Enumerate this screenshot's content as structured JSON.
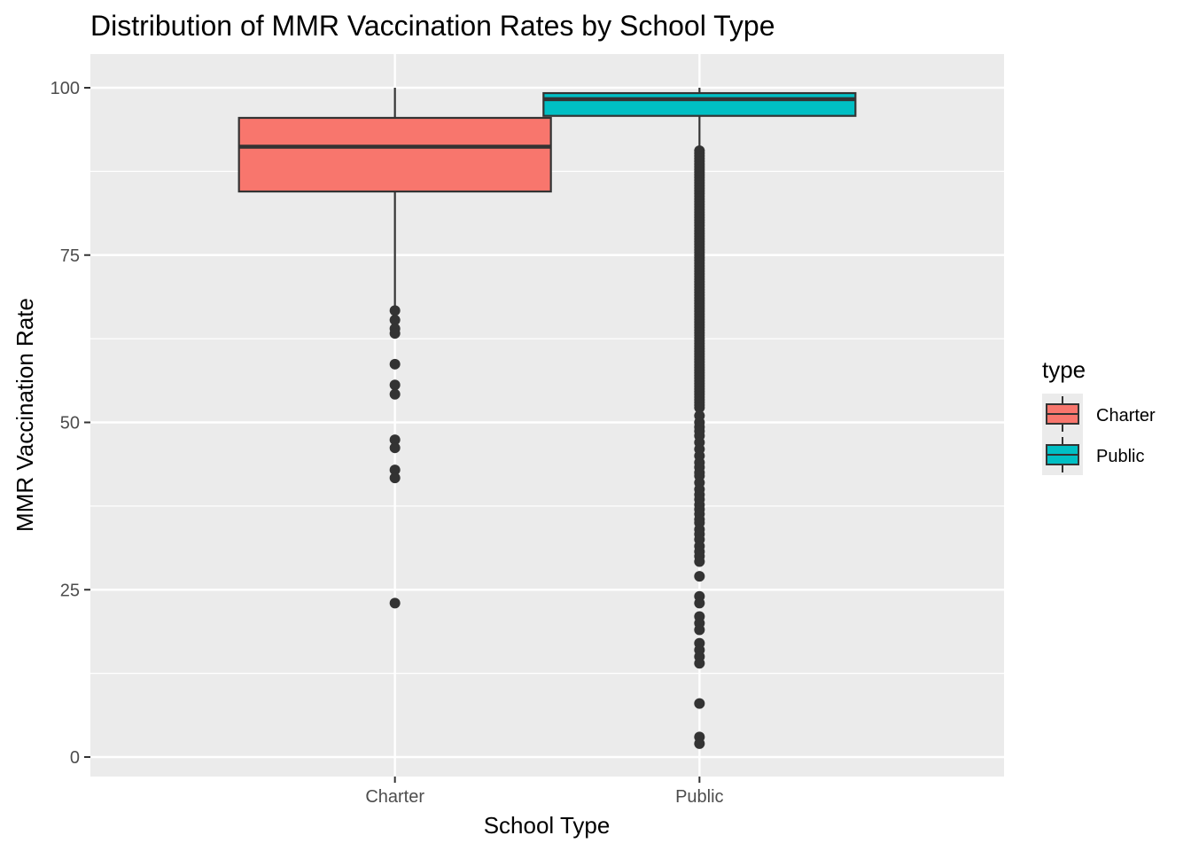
{
  "chart_data": {
    "type": "boxplot",
    "title": "Distribution of MMR Vaccination Rates by School Type",
    "xlabel": "School Type",
    "ylabel": "MMR Vaccination Rate",
    "categories": [
      "Charter",
      "Public"
    ],
    "ylim": [
      -3,
      105
    ],
    "yticks": [
      0,
      25,
      50,
      75,
      100
    ],
    "grid": true,
    "legend": {
      "title": "type",
      "position": "right",
      "entries": [
        {
          "label": "Charter",
          "color": "#F8766D"
        },
        {
          "label": "Public",
          "color": "#00BFC4"
        }
      ]
    },
    "series": [
      {
        "category": "Charter",
        "color": "#F8766D",
        "whisker_low": 67,
        "q1": 84.5,
        "median": 91.2,
        "q3": 95.5,
        "whisker_high": 100,
        "outliers": [
          66.7,
          65.3,
          64.0,
          63.3,
          58.7,
          55.6,
          54.2,
          47.4,
          46.2,
          42.9,
          41.7,
          23.0
        ]
      },
      {
        "category": "Public",
        "color": "#00BFC4",
        "whisker_low": 91,
        "q1": 95.8,
        "median": 98.3,
        "q3": 99.2,
        "whisker_high": 100,
        "outliers": [
          90.6,
          90.2,
          89.8,
          89.4,
          89.0,
          88.6,
          88.2,
          87.8,
          87.4,
          87.0,
          86.6,
          86.2,
          85.8,
          85.4,
          85.0,
          84.6,
          84.2,
          83.8,
          83.4,
          83.0,
          82.6,
          82.2,
          81.8,
          81.4,
          81.0,
          80.6,
          80.2,
          79.8,
          79.4,
          79.0,
          78.6,
          78.2,
          77.8,
          77.4,
          77.0,
          76.6,
          76.2,
          75.8,
          75.4,
          75.0,
          74.6,
          74.2,
          73.8,
          73.4,
          73.0,
          72.6,
          72.2,
          71.8,
          71.4,
          71.0,
          70.6,
          70.2,
          69.8,
          69.4,
          69.0,
          68.6,
          68.2,
          67.8,
          67.4,
          67.0,
          66.6,
          66.2,
          65.8,
          65.4,
          65.0,
          64.6,
          64.2,
          63.8,
          63.4,
          63.0,
          62.6,
          62.2,
          61.8,
          61.4,
          61.0,
          60.6,
          60.2,
          59.8,
          59.4,
          59.0,
          58.6,
          58.2,
          57.8,
          57.4,
          57.0,
          56.6,
          56.2,
          55.8,
          55.4,
          55.0,
          54.6,
          54.2,
          53.8,
          53.4,
          53.0,
          52.6,
          52.2,
          51.0,
          50.0,
          49.3,
          48.7,
          48.0,
          47.0,
          46.0,
          45.0,
          44.0,
          43.3,
          42.5,
          42.0,
          41.0,
          40.0,
          39.2,
          38.5,
          37.7,
          37.0,
          36.3,
          35.5,
          35.0,
          34.0,
          33.3,
          32.5,
          31.5,
          30.7,
          30.0,
          29.2,
          27.0,
          24.0,
          23.0,
          21.0,
          20.0,
          19.0,
          17.0,
          16.0,
          15.0,
          14.0,
          8.0,
          3.0,
          2.0
        ]
      }
    ]
  }
}
